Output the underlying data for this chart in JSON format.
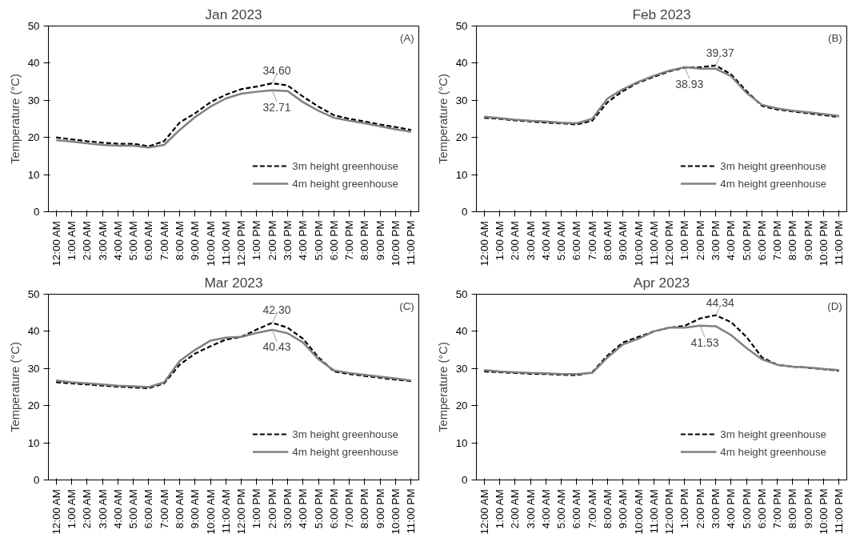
{
  "chart_data": [
    {
      "type": "line",
      "title": "Jan 2023",
      "ylabel": "Temperature (°C)",
      "categories": [
        "12:00 AM",
        "1:00 AM",
        "2:00 AM",
        "3:00 AM",
        "4:00 AM",
        "5:00 AM",
        "6:00 AM",
        "7:00 AM",
        "8:00 AM",
        "9:00 AM",
        "10:00 AM",
        "11:00 AM",
        "12:00 PM",
        "1:00 PM",
        "2:00 PM",
        "3:00 PM",
        "4:00 PM",
        "5:00 PM",
        "6:00 PM",
        "7:00 PM",
        "8:00 PM",
        "9:00 PM",
        "10:00 PM",
        "11:00 PM"
      ],
      "ylim": [
        0,
        50
      ],
      "yticks": [
        0,
        10,
        20,
        30,
        40,
        50
      ],
      "grid": false,
      "legend": "bottom right",
      "series": [
        {
          "name": "3m height greenhouse",
          "color": "#000000",
          "line_style": "dashed",
          "values": [
            20.0,
            19.5,
            19.0,
            18.6,
            18.3,
            18.3,
            17.6,
            19.0,
            24.0,
            26.5,
            29.5,
            31.5,
            33.0,
            33.7,
            34.6,
            34.0,
            31.0,
            28.3,
            26.0,
            25.0,
            24.3,
            23.5,
            22.8,
            22.0
          ]
        },
        {
          "name": "4m height greenhouse",
          "color": "#808080",
          "line_style": "solid",
          "values": [
            19.3,
            18.9,
            18.4,
            18.0,
            17.8,
            17.8,
            17.3,
            18.0,
            22.0,
            25.5,
            28.3,
            30.5,
            31.8,
            32.3,
            32.71,
            32.5,
            29.5,
            27.2,
            25.3,
            24.5,
            23.8,
            23.0,
            22.2,
            21.5
          ]
        }
      ],
      "annotations": [
        "(A)",
        {
          "text": "34.60",
          "x": "2:00 PM",
          "y": 34.6
        },
        {
          "text": "32.71",
          "x": "2:00 PM",
          "y": 32.71
        }
      ]
    },
    {
      "type": "line",
      "title": "Feb 2023",
      "ylabel": "Temperature (°C)",
      "categories": [
        "12:00 AM",
        "1:00 AM",
        "2:00 AM",
        "3:00 AM",
        "4:00 AM",
        "5:00 AM",
        "6:00 AM",
        "7:00 AM",
        "8:00 AM",
        "9:00 AM",
        "10:00 AM",
        "11:00 AM",
        "12:00 PM",
        "1:00 PM",
        "2:00 PM",
        "3:00 PM",
        "4:00 PM",
        "5:00 PM",
        "6:00 PM",
        "7:00 PM",
        "8:00 PM",
        "9:00 PM",
        "10:00 PM",
        "11:00 PM"
      ],
      "ylim": [
        0,
        50
      ],
      "yticks": [
        0,
        10,
        20,
        30,
        40,
        50
      ],
      "grid": false,
      "legend": "bottom right",
      "series": [
        {
          "name": "3m height greenhouse",
          "color": "#000000",
          "line_style": "dashed",
          "values": [
            25.3,
            25.0,
            24.6,
            24.3,
            24.0,
            23.8,
            23.5,
            24.5,
            29.5,
            32.5,
            34.8,
            36.3,
            37.8,
            38.8,
            38.9,
            39.37,
            37.0,
            32.5,
            28.5,
            27.5,
            27.0,
            26.5,
            26.0,
            25.5
          ]
        },
        {
          "name": "4m height greenhouse",
          "color": "#808080",
          "line_style": "solid",
          "values": [
            25.6,
            25.2,
            24.8,
            24.5,
            24.3,
            24.0,
            23.8,
            25.0,
            30.5,
            33.0,
            35.0,
            36.6,
            38.0,
            38.93,
            38.5,
            38.5,
            36.5,
            32.0,
            28.8,
            27.8,
            27.2,
            26.8,
            26.3,
            25.8
          ]
        }
      ],
      "annotations": [
        "(B)",
        {
          "text": "39.37",
          "x": "3:00 PM",
          "y": 39.37
        },
        {
          "text": "38.93",
          "x": "1:00 PM",
          "y": 38.93
        }
      ]
    },
    {
      "type": "line",
      "title": "Mar 2023",
      "ylabel": "Temperature (°C)",
      "categories": [
        "12:00 AM",
        "1:00 AM",
        "2:00 AM",
        "3:00 AM",
        "4:00 AM",
        "5:00 AM",
        "6:00 AM",
        "7:00 AM",
        "8:00 AM",
        "9:00 AM",
        "10:00 AM",
        "11:00 AM",
        "12:00 PM",
        "1:00 PM",
        "2:00 PM",
        "3:00 PM",
        "4:00 PM",
        "5:00 PM",
        "6:00 PM",
        "7:00 PM",
        "8:00 PM",
        "9:00 PM",
        "10:00 PM",
        "11:00 PM"
      ],
      "ylim": [
        0,
        50
      ],
      "yticks": [
        0,
        10,
        20,
        30,
        40,
        50
      ],
      "grid": false,
      "legend": "bottom right",
      "series": [
        {
          "name": "3m height greenhouse",
          "color": "#000000",
          "line_style": "dashed",
          "values": [
            26.3,
            26.0,
            25.7,
            25.4,
            25.1,
            24.9,
            24.7,
            26.0,
            31.0,
            34.0,
            36.0,
            37.8,
            38.5,
            40.5,
            42.3,
            41.0,
            38.0,
            33.0,
            29.2,
            28.5,
            28.0,
            27.5,
            27.0,
            26.6
          ]
        },
        {
          "name": "4m height greenhouse",
          "color": "#808080",
          "line_style": "solid",
          "values": [
            26.8,
            26.3,
            26.0,
            25.7,
            25.4,
            25.2,
            25.0,
            26.3,
            32.0,
            35.0,
            37.5,
            38.3,
            38.5,
            39.6,
            40.43,
            39.5,
            37.0,
            32.5,
            29.5,
            28.8,
            28.3,
            27.8,
            27.3,
            26.8
          ]
        }
      ],
      "annotations": [
        "(C)",
        {
          "text": "42.30",
          "x": "2:00 PM",
          "y": 42.3
        },
        {
          "text": "40.43",
          "x": "2:00 PM",
          "y": 40.43
        }
      ]
    },
    {
      "type": "line",
      "title": "Apr 2023",
      "ylabel": "Temperature (°C)",
      "categories": [
        "12:00 AM",
        "1:00 AM",
        "2:00 AM",
        "3:00 AM",
        "4:00 AM",
        "5:00 AM",
        "6:00 AM",
        "7:00 AM",
        "8:00 AM",
        "9:00 AM",
        "10:00 AM",
        "11:00 AM",
        "12:00 PM",
        "1:00 PM",
        "2:00 PM",
        "3:00 PM",
        "4:00 PM",
        "5:00 PM",
        "6:00 PM",
        "7:00 PM",
        "8:00 PM",
        "9:00 PM",
        "10:00 PM",
        "11:00 PM"
      ],
      "ylim": [
        0,
        50
      ],
      "yticks": [
        0,
        10,
        20,
        30,
        40,
        50
      ],
      "grid": false,
      "legend": "bottom right",
      "series": [
        {
          "name": "3m height greenhouse",
          "color": "#000000",
          "line_style": "dashed",
          "values": [
            29.2,
            29.0,
            28.8,
            28.6,
            28.5,
            28.3,
            28.2,
            29.0,
            33.5,
            37.0,
            38.5,
            40.0,
            41.0,
            41.5,
            43.5,
            44.34,
            42.5,
            38.5,
            33.0,
            31.0,
            30.5,
            30.2,
            29.8,
            29.4
          ]
        },
        {
          "name": "4m height greenhouse",
          "color": "#808080",
          "line_style": "solid",
          "values": [
            29.6,
            29.2,
            29.0,
            28.8,
            28.7,
            28.5,
            28.5,
            28.8,
            33.0,
            36.5,
            38.0,
            40.0,
            41.0,
            41.0,
            41.53,
            41.4,
            39.0,
            35.5,
            32.5,
            31.0,
            30.5,
            30.3,
            29.9,
            29.6
          ]
        }
      ],
      "annotations": [
        "(D)",
        {
          "text": "44.34",
          "x": "3:00 PM",
          "y": 44.34
        },
        {
          "text": "41.53",
          "x": "2:00 PM",
          "y": 41.53
        }
      ]
    }
  ]
}
